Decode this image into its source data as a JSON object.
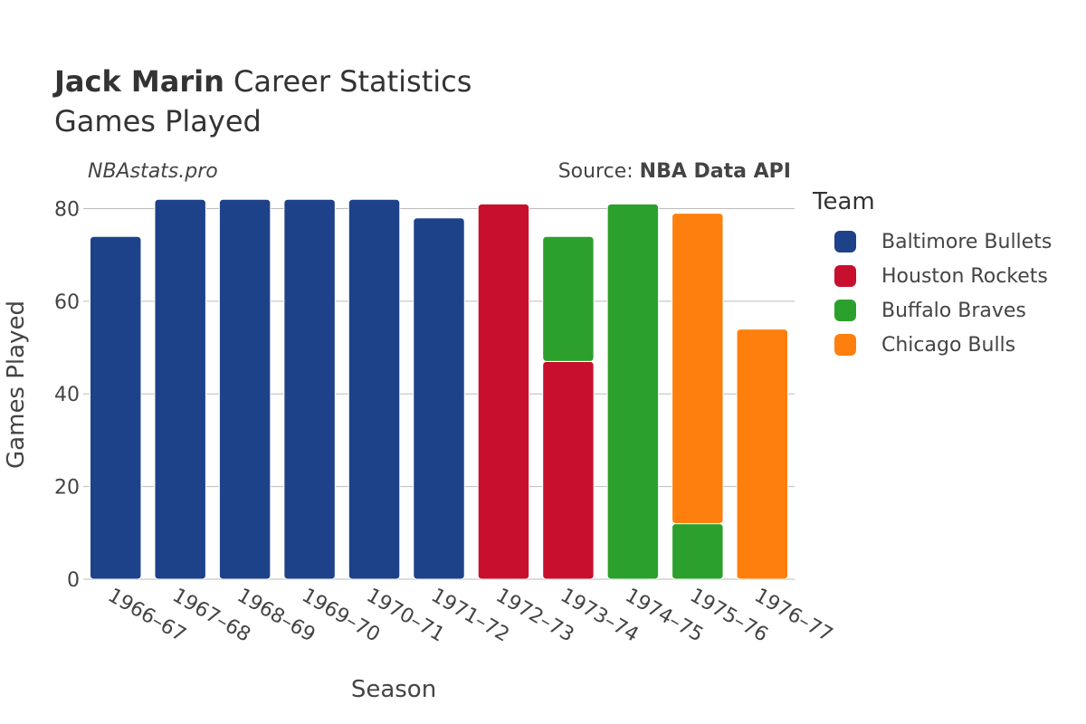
{
  "title": {
    "bold": "Jack Marin",
    "rest": "Career Statistics",
    "subtitle": "Games Played"
  },
  "watermark": "NBAstats.pro",
  "source": {
    "prefix": "Source: ",
    "name": "NBA Data API"
  },
  "legend": {
    "title": "Team",
    "items": [
      {
        "label": "Baltimore Bullets",
        "color": "#1d428a"
      },
      {
        "label": "Houston Rockets",
        "color": "#c8102e"
      },
      {
        "label": "Buffalo Braves",
        "color": "#2ca02c"
      },
      {
        "label": "Chicago Bulls",
        "color": "#ff7f0e"
      }
    ]
  },
  "chart_data": {
    "type": "bar",
    "stacked": true,
    "xlabel": "Season",
    "ylabel": "Games Played",
    "ylim": [
      0,
      84
    ],
    "yticks": [
      0,
      20,
      40,
      60,
      80
    ],
    "grid": true,
    "legend_position": "right",
    "categories": [
      "1966–67",
      "1967–68",
      "1968–69",
      "1969–70",
      "1970–71",
      "1971–72",
      "1972–73",
      "1973–74",
      "1974–75",
      "1975–76",
      "1976–77"
    ],
    "series": [
      {
        "name": "Baltimore Bullets",
        "color": "#1d428a",
        "values": [
          74,
          82,
          82,
          82,
          82,
          78,
          0,
          0,
          0,
          0,
          0
        ]
      },
      {
        "name": "Houston Rockets",
        "color": "#c8102e",
        "values": [
          0,
          0,
          0,
          0,
          0,
          0,
          81,
          47,
          0,
          0,
          0
        ]
      },
      {
        "name": "Buffalo Braves",
        "color": "#2ca02c",
        "values": [
          0,
          0,
          0,
          0,
          0,
          0,
          0,
          27,
          81,
          12,
          0
        ]
      },
      {
        "name": "Chicago Bulls",
        "color": "#ff7f0e",
        "values": [
          0,
          0,
          0,
          0,
          0,
          0,
          0,
          0,
          0,
          67,
          54
        ]
      }
    ]
  }
}
